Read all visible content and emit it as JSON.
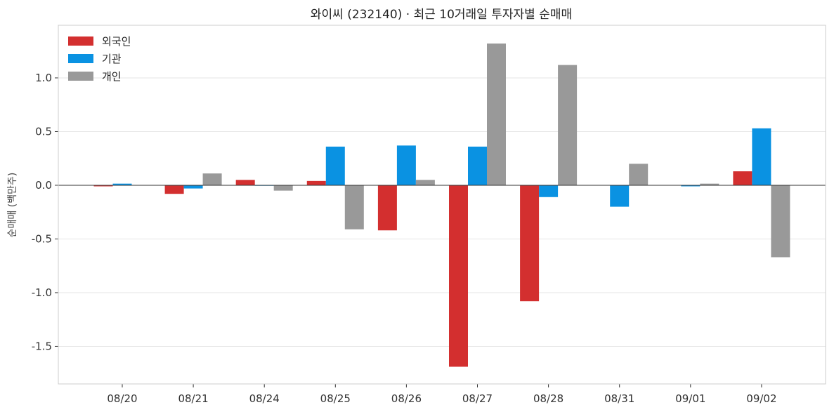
{
  "chart_data": {
    "type": "bar",
    "title": "와이씨 (232140) · 최근 10거래일 투자자별 순매매",
    "xlabel": "",
    "ylabel": "순매매 (백만주)",
    "categories": [
      "08/20",
      "08/21",
      "08/24",
      "08/25",
      "08/26",
      "08/27",
      "08/28",
      "08/31",
      "09/01",
      "09/02"
    ],
    "series": [
      {
        "name": "외국인",
        "color": "#d32f2f",
        "values": [
          -0.01,
          -0.08,
          0.05,
          0.04,
          -0.42,
          -1.69,
          -1.08,
          0.0,
          0.0,
          0.13
        ]
      },
      {
        "name": "기관",
        "color": "#0a92e2",
        "values": [
          0.015,
          -0.03,
          -0.005,
          0.36,
          0.37,
          0.36,
          -0.11,
          -0.2,
          -0.01,
          0.53
        ]
      },
      {
        "name": "개인",
        "color": "#999999",
        "values": [
          0.0,
          0.11,
          -0.05,
          -0.41,
          0.05,
          1.32,
          1.12,
          0.2,
          0.015,
          -0.67
        ]
      }
    ],
    "yticks": [
      "-1.5",
      "-1.0",
      "-0.5",
      "0.0",
      "0.5",
      "1.0"
    ],
    "ylim": [
      -1.85,
      1.49
    ],
    "grid": true,
    "legend_position": "top-left"
  }
}
